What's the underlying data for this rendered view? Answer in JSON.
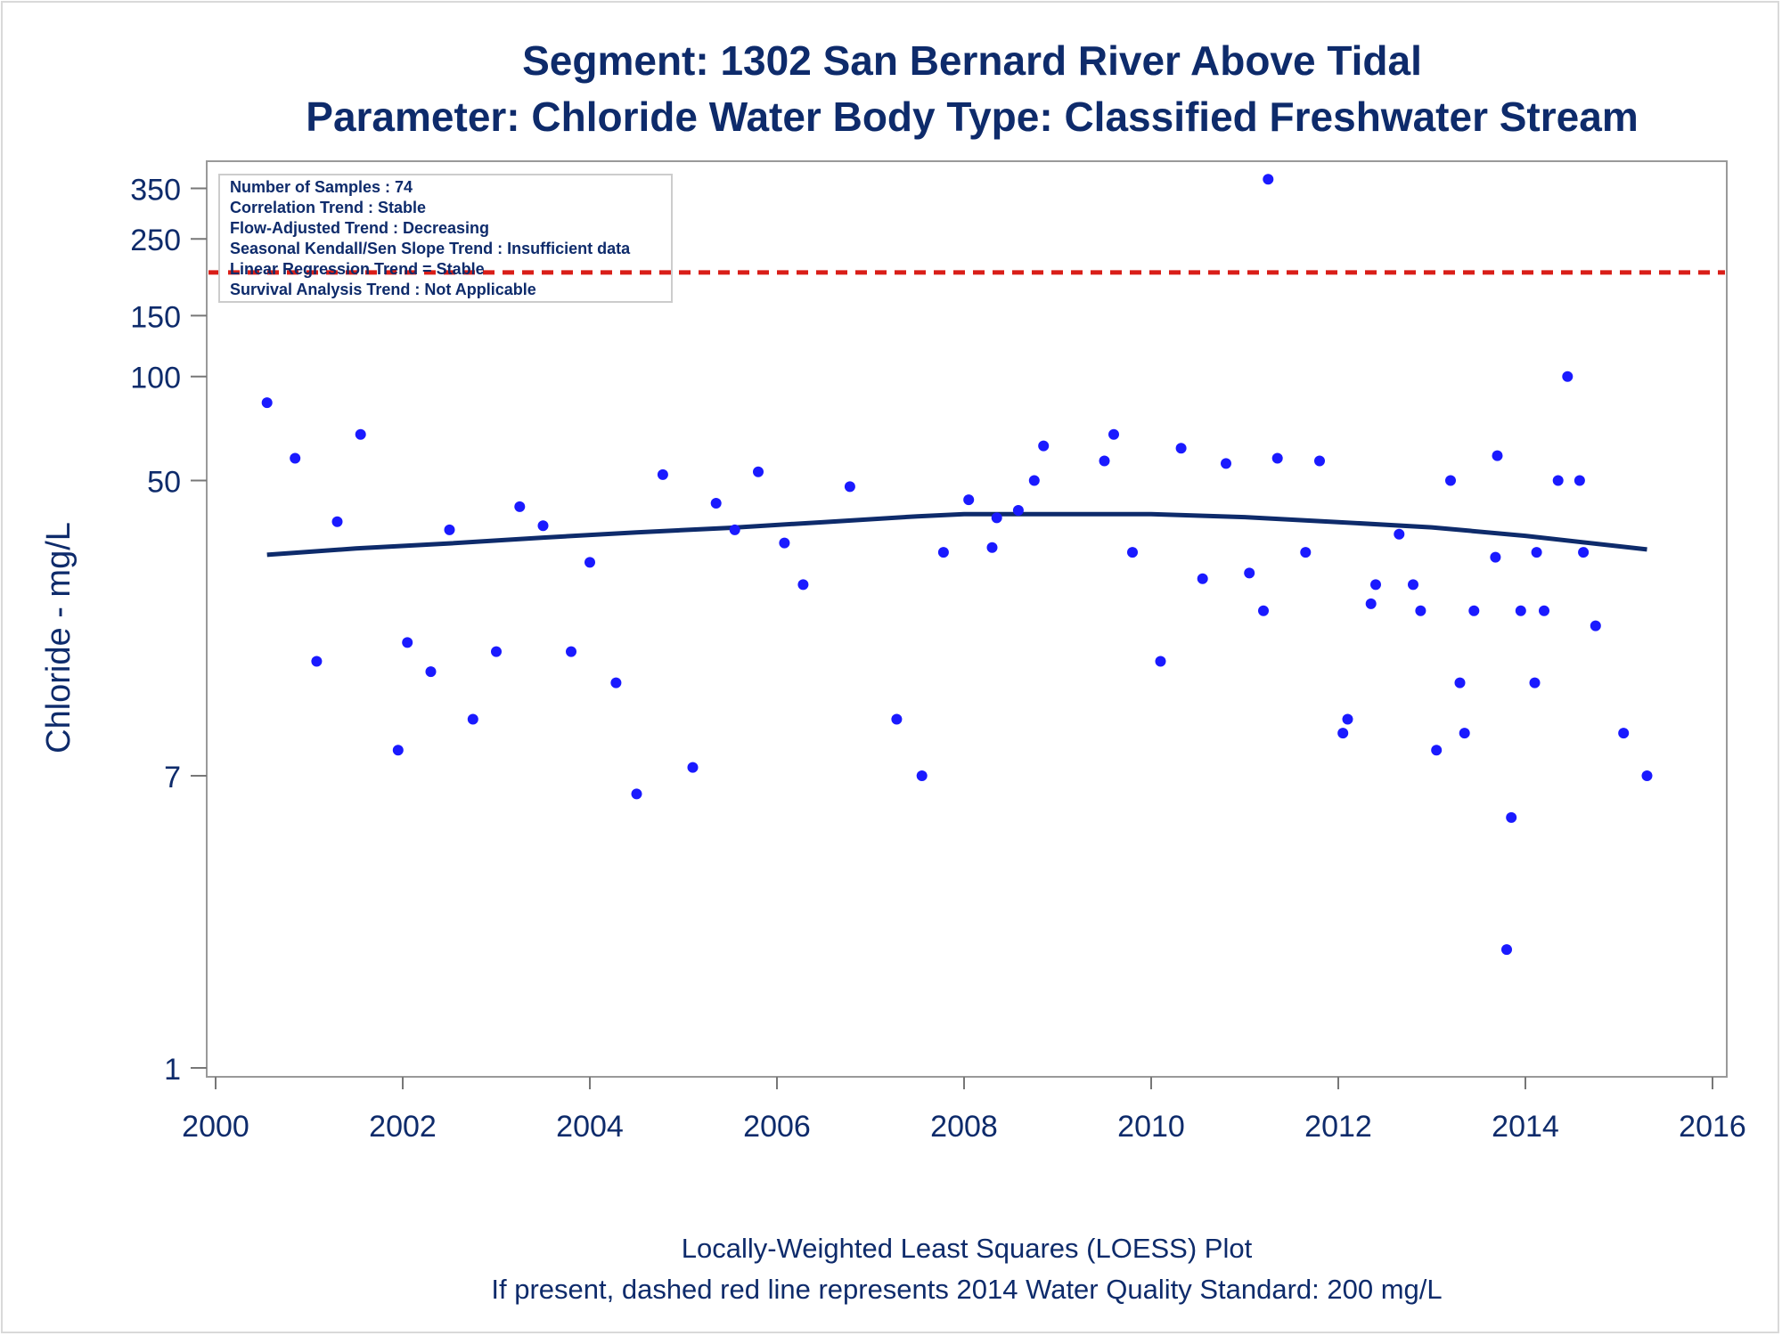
{
  "chart_data": {
    "type": "scatter",
    "title": "Segment: 1302  San Bernard River Above Tidal",
    "subtitle": "Parameter: Chloride   Water Body Type: Classified Freshwater Stream",
    "ylabel": "Chloride - mg/L",
    "xlabel": "",
    "y_scale": "log",
    "x_ticks": [
      "2000",
      "2002",
      "2004",
      "2006",
      "2008",
      "2010",
      "2012",
      "2014",
      "2016"
    ],
    "y_ticks": [
      "1",
      "7",
      "50",
      "100",
      "150",
      "250",
      "350"
    ],
    "xlim": [
      2000,
      2016
    ],
    "ylim": [
      1,
      400
    ],
    "info_box": [
      "Number of Samples : 74",
      "Correlation Trend : Stable",
      "Flow-Adjusted Trend : Decreasing",
      "Seasonal Kendall/Sen Slope Trend : Insufficient data",
      "Linear Regression Trend = Stable",
      "Survival Analysis Trend : Not Applicable"
    ],
    "standard_line": {
      "value": 200,
      "style": "dashed",
      "color": "#d91e18"
    },
    "series": [
      {
        "kind": "points",
        "color": "#1a1aff",
        "points": [
          [
            2000.55,
            84
          ],
          [
            2000.85,
            58
          ],
          [
            2001.08,
            15
          ],
          [
            2001.3,
            38
          ],
          [
            2001.55,
            68
          ],
          [
            2001.95,
            8.3
          ],
          [
            2002.05,
            17
          ],
          [
            2002.3,
            14
          ],
          [
            2002.5,
            36
          ],
          [
            2002.75,
            10.2
          ],
          [
            2003.0,
            16
          ],
          [
            2003.25,
            42
          ],
          [
            2003.5,
            37
          ],
          [
            2003.8,
            16
          ],
          [
            2004.0,
            29
          ],
          [
            2004.28,
            13
          ],
          [
            2004.5,
            6.2
          ],
          [
            2004.78,
            52
          ],
          [
            2005.1,
            7.4
          ],
          [
            2005.35,
            43
          ],
          [
            2005.55,
            36
          ],
          [
            2005.8,
            53
          ],
          [
            2006.08,
            33
          ],
          [
            2006.28,
            25
          ],
          [
            2006.78,
            48
          ],
          [
            2007.28,
            10.2
          ],
          [
            2007.55,
            7.0
          ],
          [
            2007.78,
            31
          ],
          [
            2008.05,
            44
          ],
          [
            2008.3,
            32
          ],
          [
            2008.35,
            39
          ],
          [
            2008.58,
            41
          ],
          [
            2008.75,
            50
          ],
          [
            2008.85,
            63
          ],
          [
            2009.5,
            57
          ],
          [
            2009.6,
            68
          ],
          [
            2009.8,
            31
          ],
          [
            2010.1,
            15
          ],
          [
            2010.32,
            62
          ],
          [
            2010.55,
            26
          ],
          [
            2010.8,
            56
          ],
          [
            2011.05,
            27
          ],
          [
            2011.2,
            21
          ],
          [
            2011.25,
            372
          ],
          [
            2011.35,
            58
          ],
          [
            2011.65,
            31
          ],
          [
            2011.8,
            57
          ],
          [
            2012.05,
            9.3
          ],
          [
            2012.1,
            10.2
          ],
          [
            2012.35,
            22
          ],
          [
            2012.4,
            25
          ],
          [
            2012.65,
            35
          ],
          [
            2012.8,
            25
          ],
          [
            2012.88,
            21
          ],
          [
            2013.05,
            8.3
          ],
          [
            2013.2,
            50
          ],
          [
            2013.3,
            13
          ],
          [
            2013.35,
            9.3
          ],
          [
            2013.45,
            21
          ],
          [
            2013.68,
            30
          ],
          [
            2013.7,
            59
          ],
          [
            2013.8,
            2.2
          ],
          [
            2013.85,
            5.3
          ],
          [
            2013.95,
            21
          ],
          [
            2014.1,
            13
          ],
          [
            2014.12,
            31
          ],
          [
            2014.2,
            21
          ],
          [
            2014.35,
            50
          ],
          [
            2014.45,
            100
          ],
          [
            2014.58,
            50
          ],
          [
            2014.62,
            31
          ],
          [
            2014.75,
            19
          ],
          [
            2015.05,
            9.3
          ],
          [
            2015.3,
            7.0
          ]
        ]
      },
      {
        "kind": "line",
        "color": "#0e2b6b",
        "points": [
          [
            2000.55,
            30.5
          ],
          [
            2001.5,
            31.8
          ],
          [
            2002.5,
            32.9
          ],
          [
            2003.5,
            34.2
          ],
          [
            2004.5,
            35.4
          ],
          [
            2005.5,
            36.5
          ],
          [
            2006.5,
            37.9
          ],
          [
            2007.5,
            39.4
          ],
          [
            2008.0,
            40.0
          ],
          [
            2009.0,
            40.0
          ],
          [
            2010.0,
            40.0
          ],
          [
            2011.0,
            39.2
          ],
          [
            2012.0,
            37.9
          ],
          [
            2013.0,
            36.6
          ],
          [
            2014.0,
            34.6
          ],
          [
            2015.3,
            31.6
          ]
        ]
      }
    ]
  },
  "footer": {
    "line1": "Locally-Weighted Least Squares (LOESS) Plot",
    "line2": "If present, dashed red line represents 2014 Water Quality Standard: 200    mg/L"
  }
}
